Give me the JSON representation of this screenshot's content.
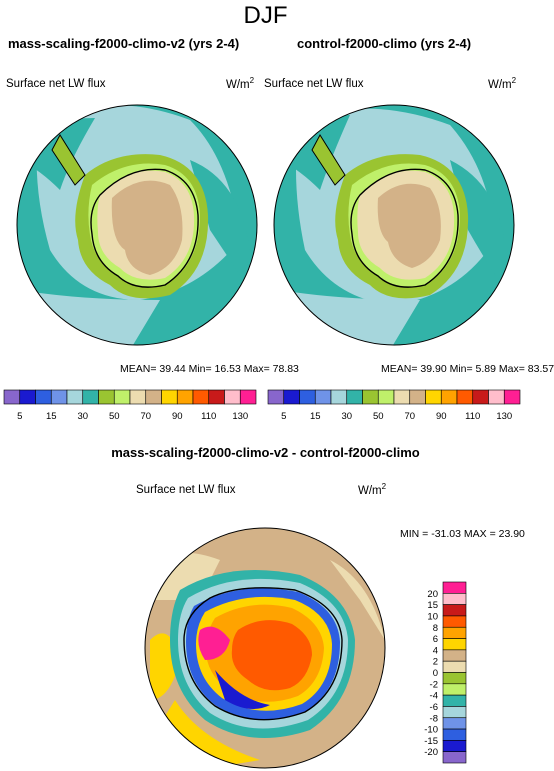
{
  "season": "DJF",
  "panels": [
    {
      "title": "mass-scaling-f2000-climo-v2 (yrs 2-4)",
      "field": "Surface net LW flux",
      "units": "W/m",
      "units_exp": "2",
      "stats": "MEAN=  39.44  Min=  16.53  Max=  78.83"
    },
    {
      "title": "control-f2000-climo (yrs 2-4)",
      "field": "Surface net LW flux",
      "units": "W/m",
      "units_exp": "2",
      "stats": "MEAN=  39.90  Min=   5.89  Max=  83.57"
    }
  ],
  "colorbar": {
    "labels": [
      "5",
      "15",
      "30",
      "50",
      "70",
      "90",
      "110",
      "130"
    ],
    "colors": [
      "#8866cc",
      "#1a1ad0",
      "#2e5fe0",
      "#6f93e8",
      "#a6d6dc",
      "#32b3a8",
      "#9ac431",
      "#bff06a",
      "#ecdcb0",
      "#d3b288",
      "#ffd500",
      "#ffa300",
      "#ff5a00",
      "#c81a1a",
      "#ffbdcb",
      "#ff1f93"
    ]
  },
  "difference": {
    "title": "mass-scaling-f2000-climo-v2 - control-f2000-climo",
    "field": "Surface net LW flux",
    "units": "W/m",
    "units_exp": "2",
    "stats": "MIN = -31.03  MAX =  23.90",
    "colorbar_labels": [
      "20",
      "15",
      "10",
      "8",
      "6",
      "4",
      "2",
      "0",
      "-2",
      "-4",
      "-6",
      "-8",
      "-10",
      "-15",
      "-20"
    ],
    "colorbar_colors": [
      "#ff1f93",
      "#ffbdcb",
      "#c81a1a",
      "#ff5a00",
      "#ffa300",
      "#ffd500",
      "#d3b288",
      "#ecdcb0",
      "#9ac431",
      "#bff06a",
      "#32b3a8",
      "#a6d6dc",
      "#6f93e8",
      "#2e5fe0",
      "#1a1ad0",
      "#8866cc"
    ]
  }
}
